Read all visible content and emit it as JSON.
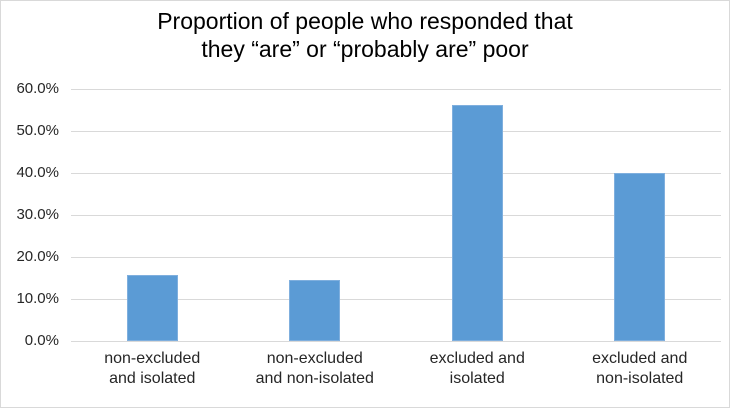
{
  "chart_data": {
    "type": "bar",
    "title": "Proportion of people who responded that they “are” or “probably are” poor",
    "title_lines": [
      "Proportion of people who responded that",
      "they “are” or “probably are” poor"
    ],
    "categories": [
      "non-excluded and isolated",
      "non-excluded and non-isolated",
      "excluded and isolated",
      "excluded and non-isolated"
    ],
    "category_lines": [
      [
        "non-excluded",
        "and isolated"
      ],
      [
        "non-excluded",
        "and non-isolated"
      ],
      [
        "excluded and",
        "isolated"
      ],
      [
        "excluded and",
        "non-isolated"
      ]
    ],
    "values": [
      15.6,
      14.5,
      56.3,
      39.9
    ],
    "value_unit": "percent",
    "xlabel": "",
    "ylabel": "",
    "ylim": [
      0,
      60
    ],
    "ytick_step": 10,
    "ytick_labels": [
      "0.0%",
      "10.0%",
      "20.0%",
      "30.0%",
      "40.0%",
      "50.0%",
      "60.0%"
    ],
    "grid": true,
    "legend": "none",
    "colors": {
      "bar": "#5b9bd5",
      "bar_border": "#7fafde",
      "gridline": "#d9d9d9",
      "axis_text": "#262626",
      "title_text": "#000000",
      "background": "#ffffff",
      "frame_border": "#d9d9d9"
    }
  }
}
